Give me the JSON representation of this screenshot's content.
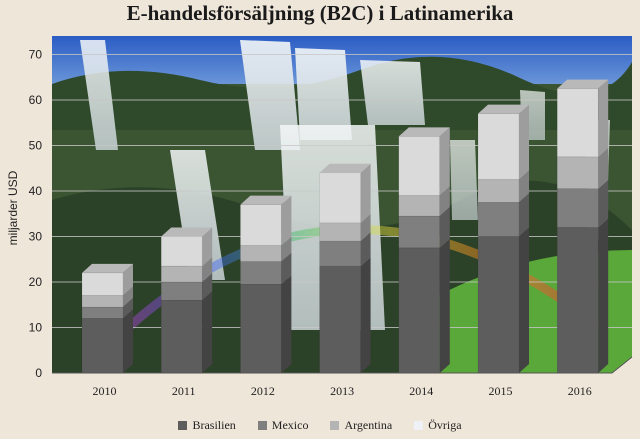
{
  "chart_data": {
    "type": "bar",
    "stacked": true,
    "title": "E-handelsförsäljning (B2C) i Latinamerika",
    "ylabel": "miljarder USD",
    "xlabel": "",
    "ylim": [
      0,
      70
    ],
    "yticks": [
      0,
      10,
      20,
      30,
      40,
      50,
      60,
      70
    ],
    "grid": true,
    "legend_position": "bottom",
    "categories": [
      "2010",
      "2011",
      "2012",
      "2013",
      "2014",
      "2015",
      "2016"
    ],
    "series": [
      {
        "name": "Brasilien",
        "color": "#5d5d5d",
        "values": [
          12,
          16,
          19.5,
          23.5,
          27.5,
          30,
          32
        ]
      },
      {
        "name": "Mexico",
        "color": "#7f7f7f",
        "values": [
          2.5,
          4,
          5,
          5.5,
          7,
          7.5,
          8.5
        ]
      },
      {
        "name": "Argentina",
        "color": "#b4b4b4",
        "values": [
          2.5,
          3.5,
          3.5,
          4,
          4.5,
          5,
          7
        ]
      },
      {
        "name": "Övriga",
        "color": "#dadada",
        "values": [
          5,
          6.5,
          9,
          11,
          13,
          14.5,
          15
        ]
      }
    ]
  },
  "background": {
    "scene": "waterfall-photo",
    "sky": "#2f62c8",
    "foliage": "#3e5a34",
    "water": "#e8eef0"
  }
}
